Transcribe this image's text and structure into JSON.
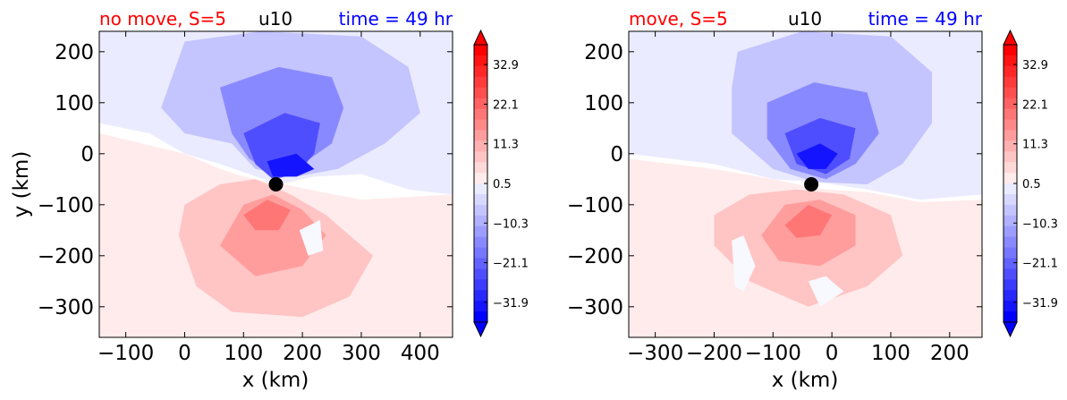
{
  "chart_data": [
    {
      "type": "heatmap",
      "title_left": "no move, S=5",
      "title_center": "u10",
      "title_right": "time = 49 hr",
      "xlabel": "x (km)",
      "ylabel": "y (km)",
      "xlim": [
        -145,
        455
      ],
      "ylim": [
        -360,
        240
      ],
      "xticks": [
        -100,
        0,
        100,
        200,
        300,
        400
      ],
      "yticks": [
        200,
        100,
        0,
        -100,
        -200,
        -300
      ],
      "marker": {
        "x": 155,
        "y": -60
      },
      "regions": [
        {
          "level": 1,
          "points": [
            [
              -145,
              240
            ],
            [
              455,
              240
            ],
            [
              455,
              -80
            ],
            [
              380,
              -70
            ],
            [
              300,
              -40
            ],
            [
              220,
              -45
            ],
            [
              160,
              -60
            ],
            [
              110,
              -40
            ],
            [
              60,
              -20
            ],
            [
              0,
              0
            ],
            [
              -60,
              40
            ],
            [
              -145,
              60
            ]
          ]
        },
        {
          "level": 3,
          "points": [
            [
              0,
              220
            ],
            [
              130,
              240
            ],
            [
              300,
              230
            ],
            [
              380,
              170
            ],
            [
              400,
              80
            ],
            [
              340,
              20
            ],
            [
              260,
              -30
            ],
            [
              190,
              -45
            ],
            [
              120,
              -30
            ],
            [
              80,
              20
            ],
            [
              0,
              40
            ],
            [
              -40,
              90
            ]
          ]
        },
        {
          "level": 6,
          "points": [
            [
              60,
              130
            ],
            [
              160,
              170
            ],
            [
              250,
              150
            ],
            [
              270,
              90
            ],
            [
              250,
              20
            ],
            [
              200,
              -20
            ],
            [
              150,
              -40
            ],
            [
              110,
              -10
            ],
            [
              80,
              40
            ]
          ]
        },
        {
          "level": 9,
          "points": [
            [
              100,
              40
            ],
            [
              170,
              80
            ],
            [
              230,
              60
            ],
            [
              220,
              0
            ],
            [
              190,
              -40
            ],
            [
              150,
              -50
            ],
            [
              120,
              -20
            ]
          ]
        },
        {
          "level": 12,
          "points": [
            [
              140,
              -15
            ],
            [
              190,
              0
            ],
            [
              220,
              -30
            ],
            [
              190,
              -45
            ],
            [
              150,
              -45
            ]
          ]
        },
        {
          "level": -1,
          "points": [
            [
              -145,
              40
            ],
            [
              0,
              0
            ],
            [
              60,
              -30
            ],
            [
              100,
              -45
            ],
            [
              140,
              -55
            ],
            [
              170,
              -60
            ],
            [
              210,
              -70
            ],
            [
              300,
              -90
            ],
            [
              455,
              -80
            ],
            [
              455,
              -360
            ],
            [
              -145,
              -360
            ]
          ]
        },
        {
          "level": -3,
          "points": [
            [
              -10,
              -160
            ],
            [
              0,
              -100
            ],
            [
              60,
              -60
            ],
            [
              120,
              -50
            ],
            [
              180,
              -80
            ],
            [
              240,
              -120
            ],
            [
              320,
              -200
            ],
            [
              280,
              -280
            ],
            [
              200,
              -320
            ],
            [
              80,
              -310
            ],
            [
              20,
              -260
            ]
          ]
        },
        {
          "level": -5,
          "points": [
            [
              60,
              -180
            ],
            [
              100,
              -100
            ],
            [
              150,
              -80
            ],
            [
              200,
              -110
            ],
            [
              240,
              -160
            ],
            [
              200,
              -220
            ],
            [
              120,
              -240
            ]
          ]
        },
        {
          "level": -7,
          "points": [
            [
              100,
              -120
            ],
            [
              140,
              -90
            ],
            [
              180,
              -110
            ],
            [
              160,
              -150
            ],
            [
              120,
              -150
            ]
          ]
        }
      ],
      "white_patches": [
        {
          "points": [
            [
              195,
              -150
            ],
            [
              230,
              -130
            ],
            [
              235,
              -190
            ],
            [
              210,
              -200
            ]
          ]
        }
      ]
    },
    {
      "type": "heatmap",
      "title_left": "move, S=5",
      "title_center": "u10",
      "title_right": "time = 49 hr",
      "xlabel": "x (km)",
      "ylabel": "",
      "xlim": [
        -345,
        255
      ],
      "ylim": [
        -360,
        240
      ],
      "xticks": [
        -300,
        -200,
        -100,
        0,
        100,
        200
      ],
      "yticks": [
        200,
        100,
        0,
        -100,
        -200,
        -300
      ],
      "marker": {
        "x": -35,
        "y": -60
      },
      "regions": [
        {
          "level": 1,
          "points": [
            [
              -345,
              240
            ],
            [
              255,
              240
            ],
            [
              255,
              -80
            ],
            [
              150,
              -90
            ],
            [
              60,
              -70
            ],
            [
              -30,
              -55
            ],
            [
              -100,
              -50
            ],
            [
              -200,
              -20
            ],
            [
              -345,
              0
            ]
          ]
        },
        {
          "level": 3,
          "points": [
            [
              -160,
              200
            ],
            [
              -50,
              240
            ],
            [
              100,
              230
            ],
            [
              170,
              160
            ],
            [
              170,
              60
            ],
            [
              120,
              -20
            ],
            [
              60,
              -60
            ],
            [
              -30,
              -55
            ],
            [
              -100,
              -30
            ],
            [
              -170,
              40
            ],
            [
              -170,
              130
            ]
          ]
        },
        {
          "level": 6,
          "points": [
            [
              -110,
              100
            ],
            [
              -30,
              140
            ],
            [
              60,
              120
            ],
            [
              80,
              40
            ],
            [
              40,
              -20
            ],
            [
              -10,
              -50
            ],
            [
              -70,
              -30
            ],
            [
              -110,
              30
            ]
          ]
        },
        {
          "level": 9,
          "points": [
            [
              -80,
              40
            ],
            [
              -20,
              70
            ],
            [
              40,
              50
            ],
            [
              30,
              -10
            ],
            [
              -10,
              -40
            ],
            [
              -60,
              -20
            ]
          ]
        },
        {
          "level": 12,
          "points": [
            [
              -60,
              0
            ],
            [
              -20,
              20
            ],
            [
              10,
              0
            ],
            [
              -10,
              -30
            ],
            [
              -40,
              -30
            ]
          ]
        },
        {
          "level": -1,
          "points": [
            [
              -345,
              -10
            ],
            [
              -200,
              -30
            ],
            [
              -100,
              -50
            ],
            [
              -40,
              -65
            ],
            [
              -10,
              -70
            ],
            [
              60,
              -75
            ],
            [
              150,
              -95
            ],
            [
              255,
              -90
            ],
            [
              255,
              -360
            ],
            [
              -345,
              -360
            ]
          ]
        },
        {
          "level": -3,
          "points": [
            [
              -200,
              -120
            ],
            [
              -140,
              -80
            ],
            [
              -60,
              -70
            ],
            [
              20,
              -80
            ],
            [
              100,
              -120
            ],
            [
              120,
              -200
            ],
            [
              60,
              -260
            ],
            [
              -40,
              -300
            ],
            [
              -140,
              -250
            ],
            [
              -200,
              -180
            ]
          ]
        },
        {
          "level": -5,
          "points": [
            [
              -120,
              -160
            ],
            [
              -80,
              -100
            ],
            [
              -20,
              -90
            ],
            [
              40,
              -120
            ],
            [
              40,
              -180
            ],
            [
              -20,
              -220
            ],
            [
              -90,
              -210
            ]
          ]
        },
        {
          "level": -7,
          "points": [
            [
              -80,
              -140
            ],
            [
              -40,
              -100
            ],
            [
              0,
              -120
            ],
            [
              -20,
              -160
            ],
            [
              -60,
              -165
            ]
          ]
        }
      ],
      "white_patches": [
        {
          "points": [
            [
              -170,
              -170
            ],
            [
              -150,
              -160
            ],
            [
              -130,
              -220
            ],
            [
              -150,
              -270
            ],
            [
              -165,
              -260
            ]
          ]
        },
        {
          "points": [
            [
              -40,
              -250
            ],
            [
              -10,
              -240
            ],
            [
              20,
              -270
            ],
            [
              -20,
              -300
            ]
          ]
        }
      ]
    }
  ],
  "colorbar": {
    "ticks": [
      "32.9",
      "22.1",
      "11.3",
      "0.5",
      "−10.3",
      "−21.1",
      "−31.9"
    ],
    "tick_values": [
      32.9,
      22.1,
      11.3,
      0.5,
      -10.3,
      -21.1,
      -31.9
    ],
    "range": [
      -37.3,
      38.3
    ],
    "extend": "both"
  },
  "colors": {
    "title_left": "#ff0000",
    "title_center": "#000000",
    "title_right": "#0000ff",
    "marker": "#000000"
  }
}
